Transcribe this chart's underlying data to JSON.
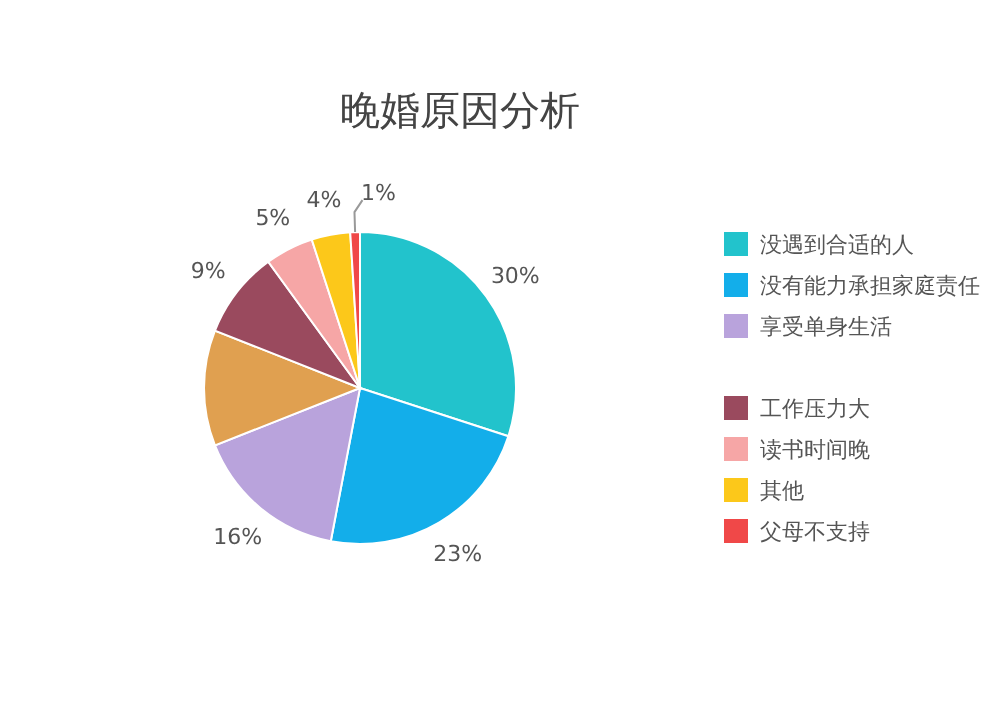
{
  "chart_data": {
    "type": "pie",
    "title": "晚婚原因分析",
    "categories": [
      "没遇到合适的人",
      "没有能力承担家庭责任",
      "享受单身生活",
      null,
      "工作压力大",
      "读书时间晚",
      "其他",
      "父母不支持"
    ],
    "values": [
      30,
      23,
      16,
      12,
      9,
      5,
      4,
      1
    ],
    "value_labels": [
      "30%",
      "23%",
      "16%",
      null,
      "9%",
      "5%",
      "4%",
      "1%"
    ],
    "colors": [
      "#22c3cc",
      "#13aeea",
      "#b9a3dc",
      "#e0a050",
      "#9a4a5e",
      "#f6a6a6",
      "#fcc81a",
      "#f04848"
    ],
    "legend": "right"
  }
}
